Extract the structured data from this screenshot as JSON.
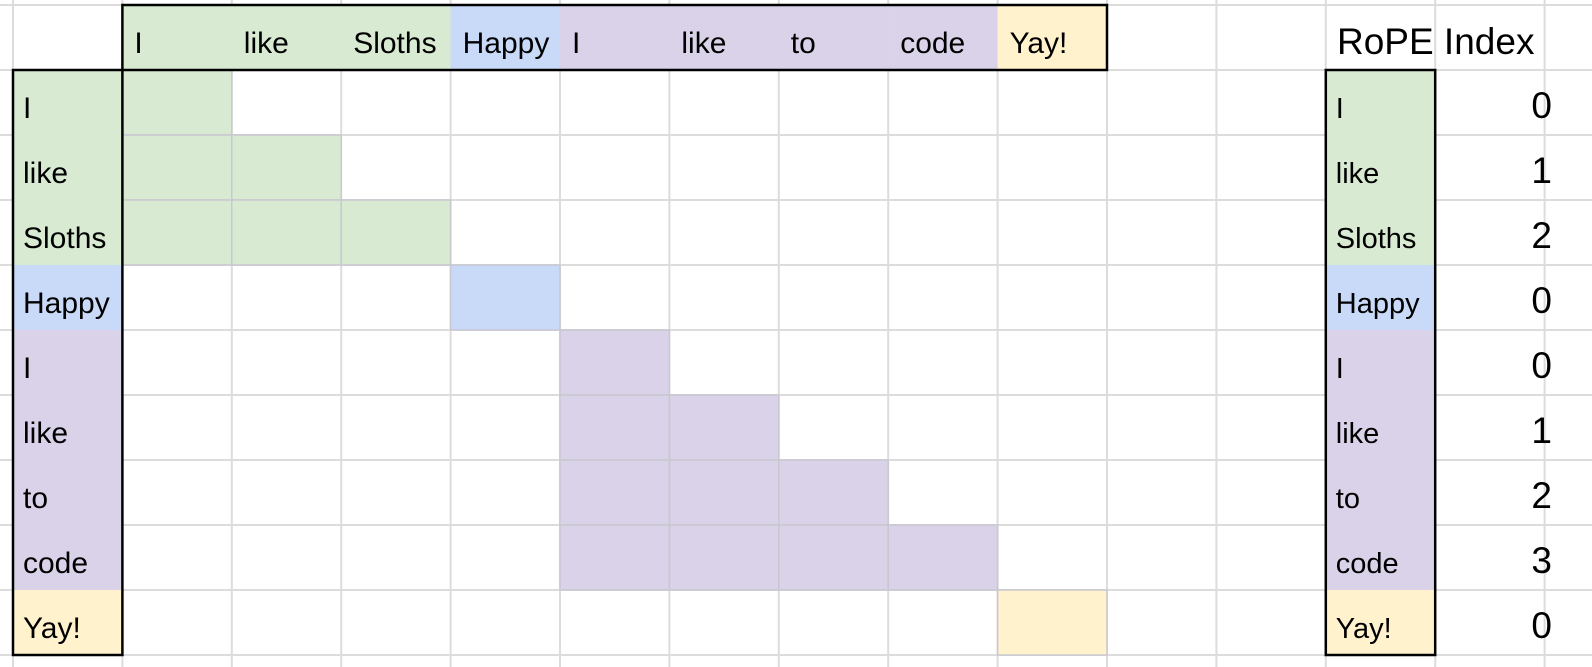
{
  "tokens": [
    {
      "text": "I",
      "color": "#d9ead3"
    },
    {
      "text": "like",
      "color": "#d9ead3"
    },
    {
      "text": "Sloths",
      "color": "#d9ead3"
    },
    {
      "text": "Happy",
      "color": "#c9daf8"
    },
    {
      "text": "I",
      "color": "#d9d2e9"
    },
    {
      "text": "like",
      "color": "#d9d2e9"
    },
    {
      "text": "to",
      "color": "#d9d2e9"
    },
    {
      "text": "code",
      "color": "#d9d2e9"
    },
    {
      "text": "Yay!",
      "color": "#fff2cc"
    }
  ],
  "rope_table": {
    "title": "RoPE Index",
    "indices": [
      0,
      1,
      2,
      0,
      0,
      1,
      2,
      3,
      0
    ]
  }
}
